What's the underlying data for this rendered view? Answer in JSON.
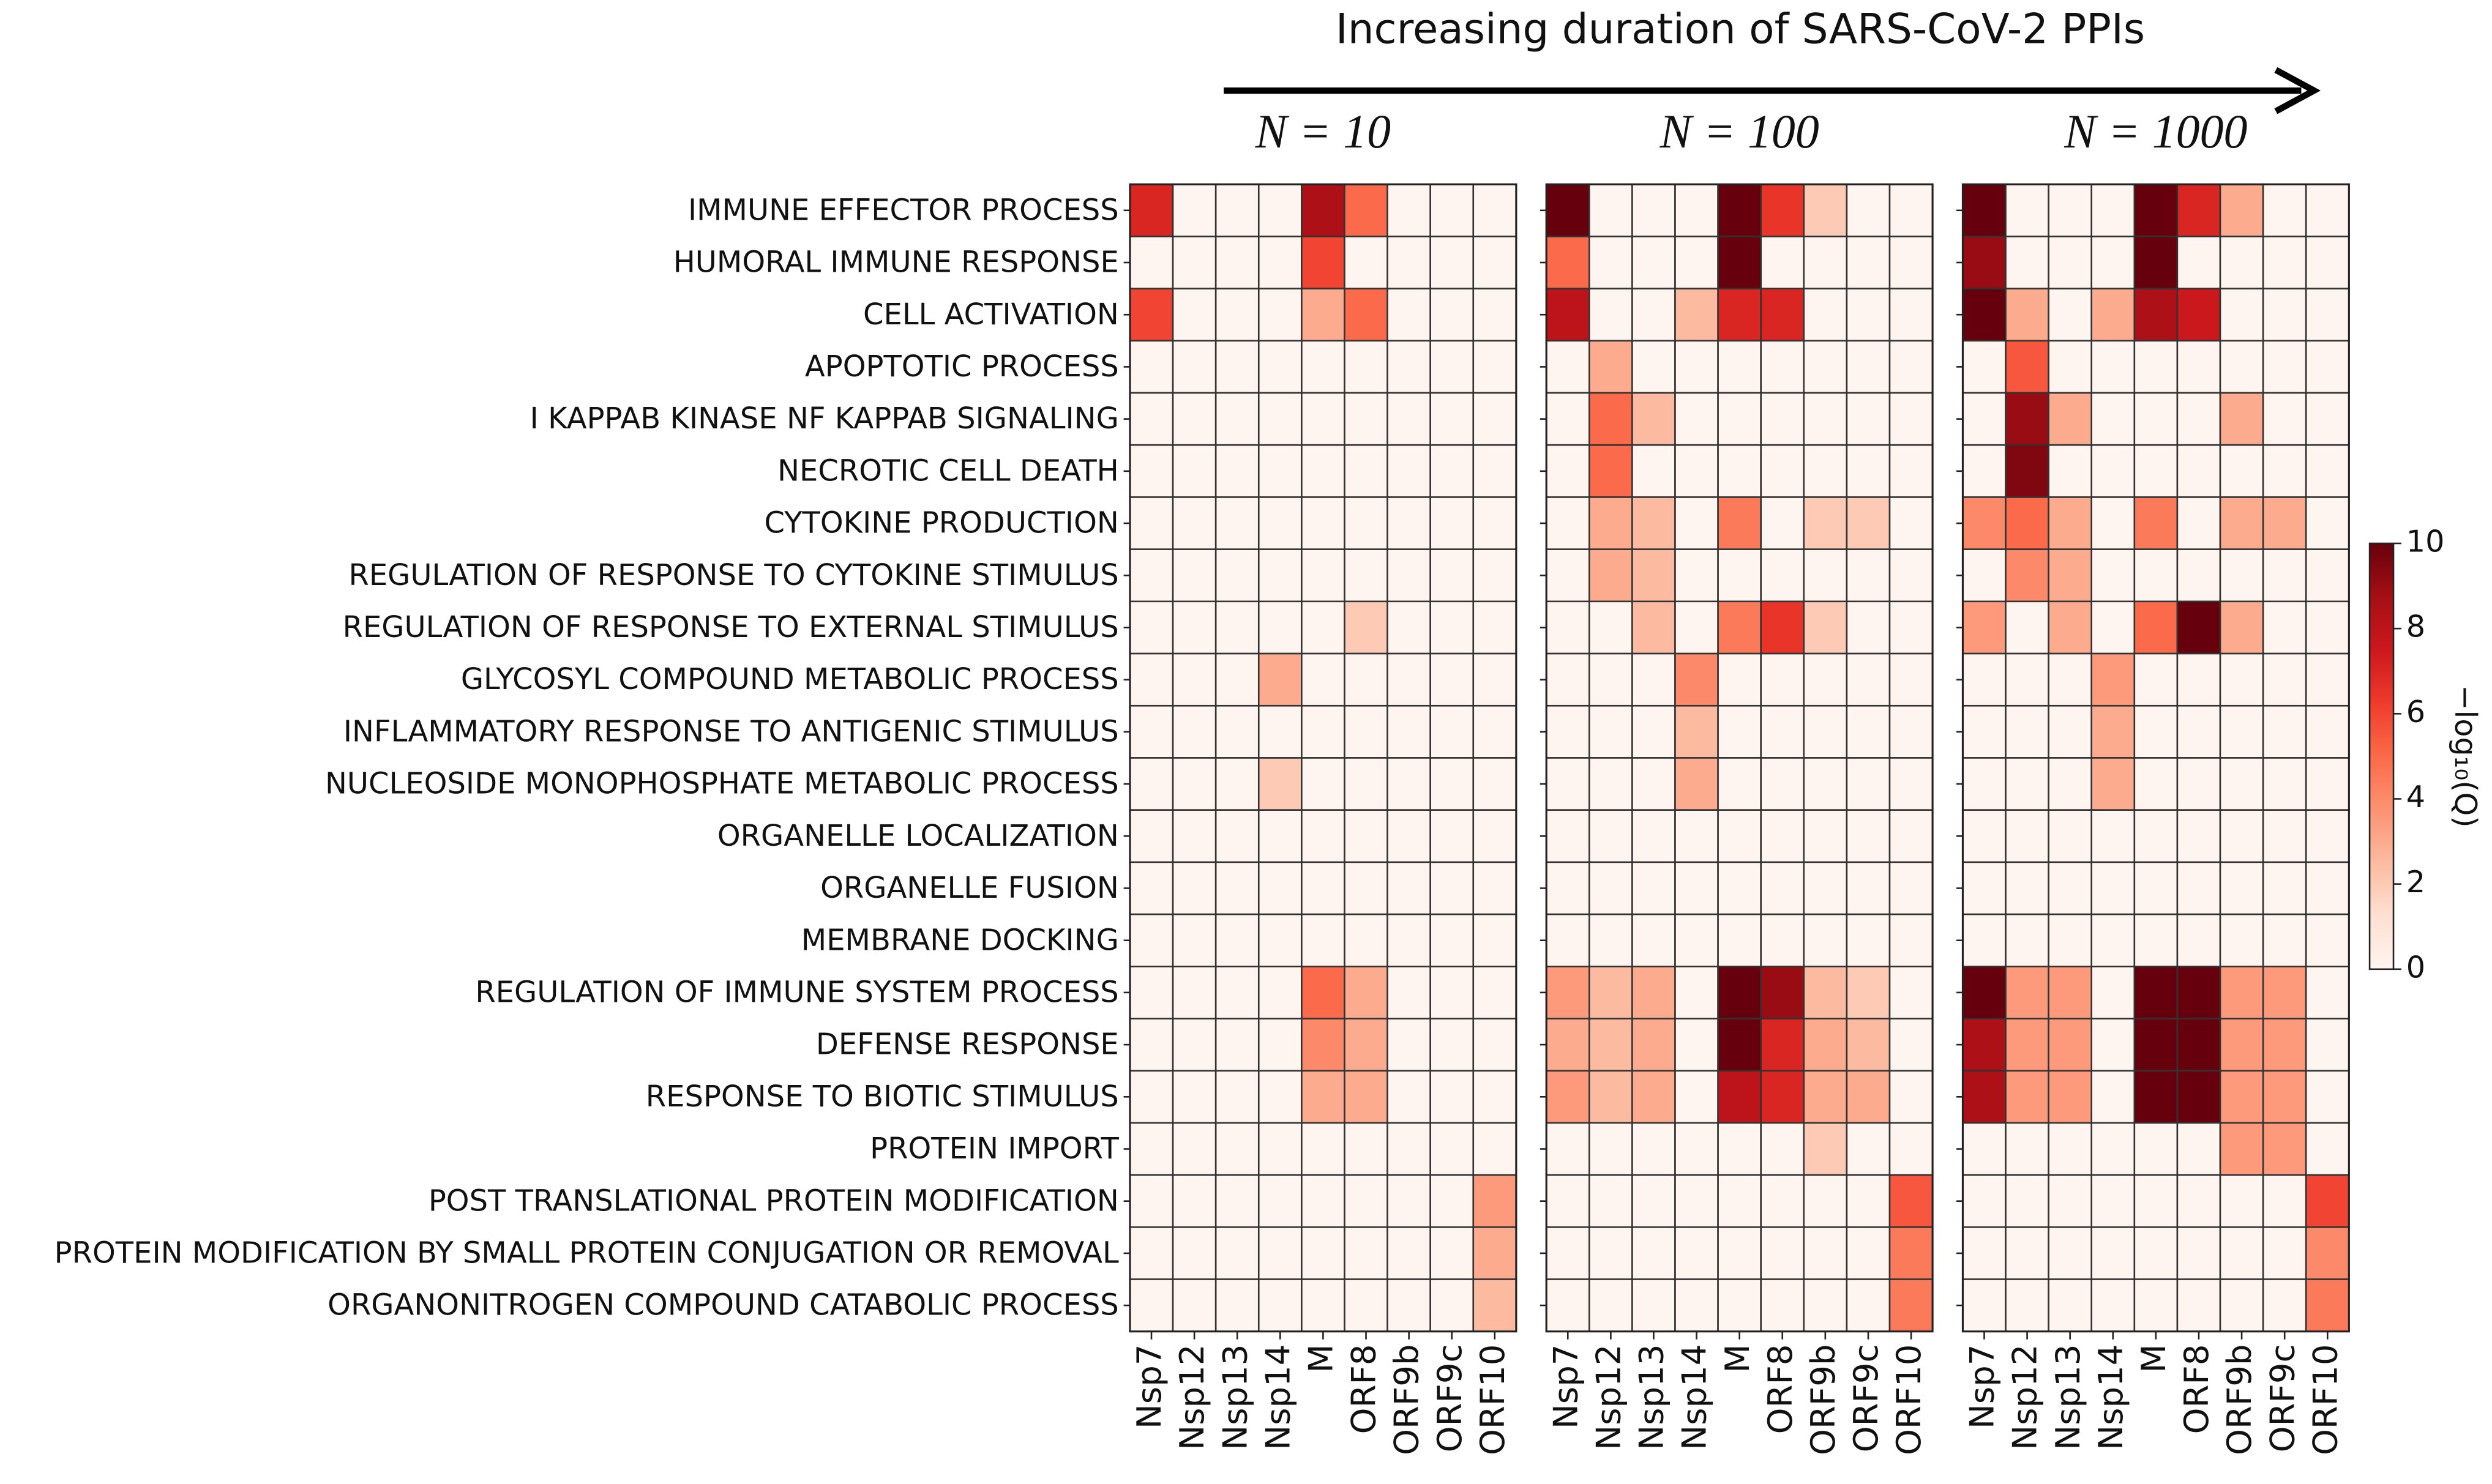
{
  "chart_data": {
    "type": "heatmap",
    "title": "Increasing duration of SARS-CoV-2 PPIs",
    "rows": [
      "IMMUNE EFFECTOR PROCESS",
      "HUMORAL IMMUNE RESPONSE",
      "CELL ACTIVATION",
      "APOPTOTIC PROCESS",
      "I KAPPAB KINASE NF KAPPAB SIGNALING",
      "NECROTIC CELL DEATH",
      "CYTOKINE PRODUCTION",
      "REGULATION OF RESPONSE TO CYTOKINE STIMULUS",
      "REGULATION OF RESPONSE TO EXTERNAL STIMULUS",
      "GLYCOSYL COMPOUND METABOLIC PROCESS",
      "INFLAMMATORY RESPONSE TO ANTIGENIC STIMULUS",
      "NUCLEOSIDE MONOPHOSPHATE METABOLIC PROCESS",
      "ORGANELLE LOCALIZATION",
      "ORGANELLE FUSION",
      "MEMBRANE DOCKING",
      "REGULATION OF IMMUNE SYSTEM PROCESS",
      "DEFENSE RESPONSE",
      "RESPONSE TO BIOTIC STIMULUS",
      "PROTEIN IMPORT",
      "POST TRANSLATIONAL PROTEIN MODIFICATION",
      "PROTEIN MODIFICATION BY SMALL PROTEIN CONJUGATION OR REMOVAL",
      "ORGANONITROGEN COMPOUND CATABOLIC PROCESS"
    ],
    "columns": [
      "Nsp7",
      "Nsp12",
      "Nsp13",
      "Nsp14",
      "M",
      "ORF8",
      "ORF9b",
      "ORF9c",
      "ORF10"
    ],
    "panels": [
      {
        "title": "N = 10",
        "values": [
          [
            7,
            0,
            0,
            0,
            8.5,
            5,
            0,
            0,
            0
          ],
          [
            0,
            0,
            0,
            0,
            6,
            0,
            0,
            0,
            0
          ],
          [
            6,
            0,
            0,
            0,
            3,
            5,
            0,
            0,
            0
          ],
          [
            0,
            0,
            0,
            0,
            0,
            0,
            0,
            0,
            0
          ],
          [
            0,
            0,
            0,
            0,
            0,
            0,
            0,
            0,
            0
          ],
          [
            0,
            0,
            0,
            0,
            0,
            0,
            0,
            0,
            0
          ],
          [
            0,
            0,
            0,
            0,
            0,
            0,
            0,
            0,
            0
          ],
          [
            0,
            0,
            0,
            0,
            0,
            0,
            0,
            0,
            0
          ],
          [
            0,
            0,
            0,
            0,
            0,
            2,
            0,
            0,
            0
          ],
          [
            0,
            0,
            0,
            3,
            0,
            0,
            0,
            0,
            0
          ],
          [
            0,
            0,
            0,
            0,
            0,
            0,
            0,
            0,
            0
          ],
          [
            0,
            0,
            0,
            2,
            0,
            0,
            0,
            0,
            0
          ],
          [
            0,
            0,
            0,
            0,
            0,
            0,
            0,
            0,
            0
          ],
          [
            0,
            0,
            0,
            0,
            0,
            0,
            0,
            0,
            0
          ],
          [
            0,
            0,
            0,
            0,
            0,
            0,
            0,
            0,
            0
          ],
          [
            0,
            0,
            0,
            0,
            5,
            3,
            0,
            0,
            0
          ],
          [
            0,
            0,
            0,
            0,
            4,
            3,
            0,
            0,
            0
          ],
          [
            0,
            0,
            0,
            0,
            3,
            3,
            0,
            0,
            0
          ],
          [
            0,
            0,
            0,
            0,
            0,
            0,
            0,
            0,
            0
          ],
          [
            0,
            0,
            0,
            0,
            0,
            0,
            0,
            0,
            3.5
          ],
          [
            0,
            0,
            0,
            0,
            0,
            0,
            0,
            0,
            3
          ],
          [
            0,
            0,
            0,
            0,
            0,
            0,
            0,
            0,
            2.5
          ]
        ]
      },
      {
        "title": "N = 100",
        "values": [
          [
            10,
            0,
            0,
            0,
            10,
            6.5,
            2,
            0,
            0
          ],
          [
            5,
            0,
            0,
            0,
            10,
            0,
            0,
            0,
            0
          ],
          [
            8,
            0,
            0,
            2.5,
            7,
            7,
            0,
            0,
            0
          ],
          [
            0,
            3,
            0,
            0,
            0,
            0,
            0,
            0,
            0
          ],
          [
            0,
            5,
            2.5,
            0,
            0,
            0,
            0,
            0,
            0
          ],
          [
            0,
            5,
            0,
            0,
            0,
            0,
            0,
            0,
            0
          ],
          [
            0,
            3,
            2.5,
            0,
            4.5,
            0,
            2,
            2,
            0
          ],
          [
            0,
            3,
            2.5,
            0,
            0,
            0,
            0,
            0,
            0
          ],
          [
            0,
            0,
            2.5,
            0,
            4.5,
            6.5,
            2,
            0,
            0
          ],
          [
            0,
            0,
            0,
            4,
            0,
            0,
            0,
            0,
            0
          ],
          [
            0,
            0,
            0,
            2.5,
            0,
            0,
            0,
            0,
            0
          ],
          [
            0,
            0,
            0,
            3,
            0,
            0,
            0,
            0,
            0
          ],
          [
            0,
            0,
            0,
            0,
            0,
            0,
            0,
            0,
            0
          ],
          [
            0,
            0,
            0,
            0,
            0,
            0,
            0,
            0,
            0
          ],
          [
            0,
            0,
            0,
            0,
            0,
            0,
            0,
            0,
            0
          ],
          [
            3.5,
            2.5,
            3,
            0,
            10,
            9,
            2.5,
            2,
            0
          ],
          [
            3,
            2.5,
            3,
            0,
            10,
            7,
            3,
            2.5,
            0
          ],
          [
            3.5,
            2.5,
            3,
            0,
            8,
            7,
            3,
            3,
            0
          ],
          [
            0,
            0,
            0,
            0,
            0,
            0,
            2,
            0,
            0
          ],
          [
            0,
            0,
            0,
            0,
            0,
            0,
            0,
            0,
            5.5
          ],
          [
            0,
            0,
            0,
            0,
            0,
            0,
            0,
            0,
            4.5
          ],
          [
            0,
            0,
            0,
            0,
            0,
            0,
            0,
            0,
            4.5
          ]
        ]
      },
      {
        "title": "N = 1000",
        "values": [
          [
            10,
            0,
            0,
            0,
            10,
            7,
            3,
            0,
            0
          ],
          [
            9,
            0,
            0,
            0,
            10,
            0,
            0,
            0,
            0
          ],
          [
            10,
            3,
            0,
            3,
            8.5,
            7.5,
            0,
            0,
            0
          ],
          [
            0,
            5.5,
            0,
            0,
            0,
            0,
            0,
            0,
            0
          ],
          [
            0,
            9,
            3,
            0,
            0,
            0,
            3,
            0,
            0
          ],
          [
            0,
            9.5,
            0,
            0,
            0,
            0,
            0,
            0,
            0
          ],
          [
            4,
            5,
            3,
            0,
            4.5,
            0,
            3,
            3,
            0
          ],
          [
            0,
            4,
            3,
            0,
            0,
            0,
            0,
            0,
            0
          ],
          [
            3.5,
            0,
            3,
            0,
            5,
            10,
            3,
            0,
            0
          ],
          [
            0,
            0,
            0,
            3.5,
            0,
            0,
            0,
            0,
            0
          ],
          [
            0,
            0,
            0,
            3,
            0,
            0,
            0,
            0,
            0
          ],
          [
            0,
            0,
            0,
            3,
            0,
            0,
            0,
            0,
            0
          ],
          [
            0,
            0,
            0,
            0,
            0,
            0,
            0,
            0,
            0
          ],
          [
            0,
            0,
            0,
            0,
            0,
            0,
            0,
            0,
            0
          ],
          [
            0,
            0,
            0,
            0,
            0,
            0,
            0,
            0,
            0
          ],
          [
            10,
            3.5,
            3.5,
            0,
            10,
            10,
            3.5,
            3.5,
            0
          ],
          [
            8.5,
            3.5,
            3.5,
            0,
            10,
            10,
            3.5,
            3.5,
            0
          ],
          [
            8.5,
            3.5,
            3.5,
            0,
            10,
            10,
            3.5,
            3.5,
            0
          ],
          [
            0,
            0,
            0,
            0,
            0,
            0,
            3.5,
            3.5,
            0
          ],
          [
            0,
            0,
            0,
            0,
            0,
            0,
            0,
            0,
            6
          ],
          [
            0,
            0,
            0,
            0,
            0,
            0,
            0,
            0,
            4
          ],
          [
            0,
            0,
            0,
            0,
            0,
            0,
            0,
            0,
            4.5
          ]
        ]
      }
    ],
    "clim": [
      0,
      10
    ],
    "cticks": [
      0,
      2,
      4,
      6,
      8,
      10
    ],
    "colorbar_label": "−log₁₀(Q)",
    "colormap": "Reds"
  }
}
